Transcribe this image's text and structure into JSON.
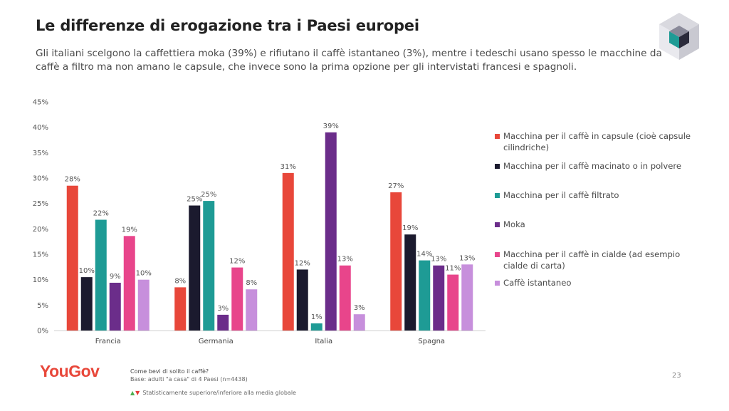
{
  "header": {
    "title": "Le differenze di erogazione tra i Paesi europei",
    "subtitle": "Gli italiani scelgono la caffettiera moka (39%) e rifiutano il caffè istantaneo (3%), mentre i tedeschi usano spesso le macchine da caffè a filtro ma non amano le capsule, che invece sono la prima opzione per gli intervistati francesi e spagnoli."
  },
  "chart_data": {
    "type": "bar",
    "categories": [
      "Francia",
      "Germania",
      "Italia",
      "Spagna"
    ],
    "ylim": [
      0,
      45
    ],
    "yticks": [
      0,
      5,
      10,
      15,
      20,
      25,
      30,
      35,
      40,
      45
    ],
    "ytick_labels": [
      "0%",
      "5%",
      "10%",
      "15%",
      "20%",
      "25%",
      "30%",
      "35%",
      "40%",
      "45%"
    ],
    "grid": false,
    "legend_position": "right",
    "series": [
      {
        "name": "Macchina per il caffè in capsule (cioè capsule cilindriche)",
        "color": "#e8473a",
        "values": [
          28.5,
          8.5,
          31,
          27.2
        ],
        "labels": [
          "28%",
          "8%",
          "31%",
          "27%"
        ]
      },
      {
        "name": "Macchina per il caffè macinato o in polvere",
        "color": "#1b1a2e",
        "values": [
          10.5,
          24.6,
          12,
          18.9
        ],
        "labels": [
          "10%",
          "25%",
          "12%",
          "19%"
        ]
      },
      {
        "name": "Macchina per il caffè filtrato",
        "color": "#1e9b95",
        "values": [
          21.8,
          25.5,
          1.4,
          13.8
        ],
        "labels": [
          "22%",
          "25%",
          "1%",
          "14%"
        ]
      },
      {
        "name": "Moka",
        "color": "#6b2d8a",
        "values": [
          9.4,
          3.1,
          39,
          12.8
        ],
        "labels": [
          "9%",
          "3%",
          "39%",
          "13%"
        ]
      },
      {
        "name": "Macchina per il caffè in cialde (ad esempio cialde di carta)",
        "color": "#e8458b",
        "values": [
          18.6,
          12.4,
          12.8,
          11
        ],
        "labels": [
          "19%",
          "12%",
          "13%",
          "11%"
        ]
      },
      {
        "name": "Caffè istantaneo",
        "color": "#c78fdc",
        "values": [
          10,
          8.1,
          3.2,
          13
        ],
        "labels": [
          "10%",
          "8%",
          "3%",
          "13%"
        ]
      }
    ]
  },
  "footer": {
    "brand": "YouGov",
    "question": "Come bevi di solito il caffè?",
    "base": "Base: adulti \"a casa\" di 4 Paesi (n=4438)",
    "significance": "Statisticamente superiore/inferiore alla media globale",
    "page_number": "23"
  },
  "icons": {
    "corner_logo": "isometric-cube-icon",
    "sig_up": "triangle-up-icon",
    "sig_down": "triangle-down-icon"
  }
}
